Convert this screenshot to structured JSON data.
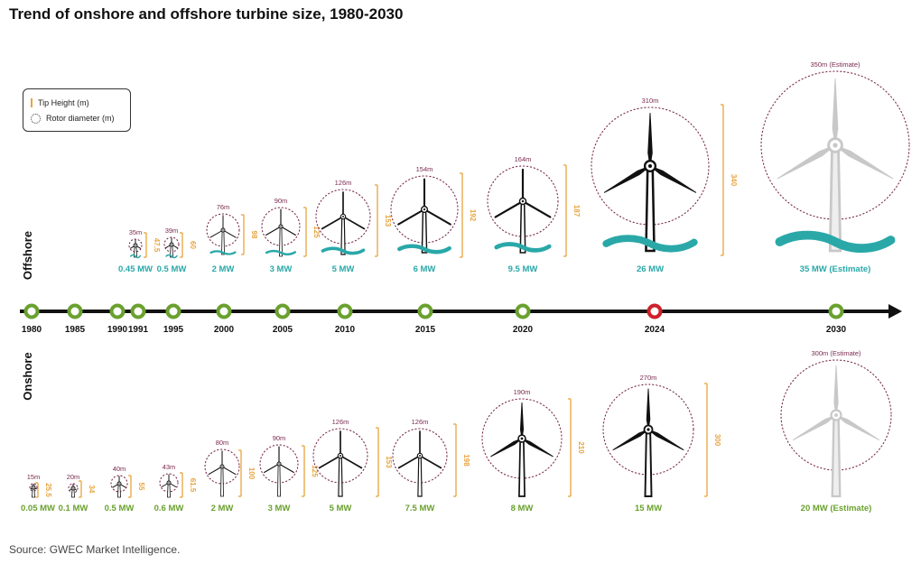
{
  "title": "Trend of onshore and offshore turbine size, 1980-2030",
  "source": "Source: GWEC Market Intelligence.",
  "legend": {
    "tip_height": "Tip Height (m)",
    "rotor_diameter": "Rotor diameter (m)"
  },
  "section_labels": {
    "offshore": "Offshore",
    "onshore": "Onshore"
  },
  "colors": {
    "offshore_label": "#2aa8a8",
    "onshore_label": "#6aa12e",
    "tip_bar": "#e8a33d",
    "rotor_label": "#7a2b4e",
    "timeline_node": "#6aa12e",
    "highlight_node": "#d0202a",
    "wave": "#2aa8a8",
    "estimate": "#c8c8c8"
  },
  "chart_data": {
    "type": "timeline",
    "years": [
      "1980",
      "1985",
      "1990",
      "1991",
      "1995",
      "2000",
      "2005",
      "2010",
      "2015",
      "2020",
      "2024",
      "2030"
    ],
    "highlight_year": "2024",
    "offshore": [
      {
        "capacity": "0.45 MW",
        "rotor": "35m",
        "tip": "47.5"
      },
      {
        "capacity": "0.5 MW",
        "rotor": "39m",
        "tip": "60"
      },
      {
        "capacity": "2 MW",
        "rotor": "76m",
        "tip": "98"
      },
      {
        "capacity": "3 MW",
        "rotor": "90m",
        "tip": "125"
      },
      {
        "capacity": "5 MW",
        "rotor": "126m",
        "tip": "153"
      },
      {
        "capacity": "6 MW",
        "rotor": "154m",
        "tip": "192"
      },
      {
        "capacity": "9.5 MW",
        "rotor": "164m",
        "tip": "187"
      },
      {
        "capacity": "26 MW",
        "rotor": "310m",
        "tip": "340"
      },
      {
        "capacity": "35 MW (Estimate)",
        "rotor": "350m (Estimate)",
        "tip": "",
        "estimate": true
      }
    ],
    "onshore": [
      {
        "capacity": "0.05 MW",
        "rotor": "15m",
        "tip": "25.5"
      },
      {
        "capacity": "0.1 MW",
        "rotor": "20m",
        "tip": "34"
      },
      {
        "capacity": "0.5 MW",
        "rotor": "40m",
        "tip": "55"
      },
      {
        "capacity": "0.6 MW",
        "rotor": "43m",
        "tip": "61.5"
      },
      {
        "capacity": "2 MW",
        "rotor": "80m",
        "tip": "100"
      },
      {
        "capacity": "3 MW",
        "rotor": "90m",
        "tip": "125"
      },
      {
        "capacity": "5 MW",
        "rotor": "126m",
        "tip": "153"
      },
      {
        "capacity": "7.5 MW",
        "rotor": "126m",
        "tip": "198"
      },
      {
        "capacity": "8 MW",
        "rotor": "190m",
        "tip": "210"
      },
      {
        "capacity": "15 MW",
        "rotor": "270m",
        "tip": "300"
      },
      {
        "capacity": "20 MW (Estimate)",
        "rotor": "300m (Estimate)",
        "tip": "",
        "estimate": true
      }
    ]
  }
}
